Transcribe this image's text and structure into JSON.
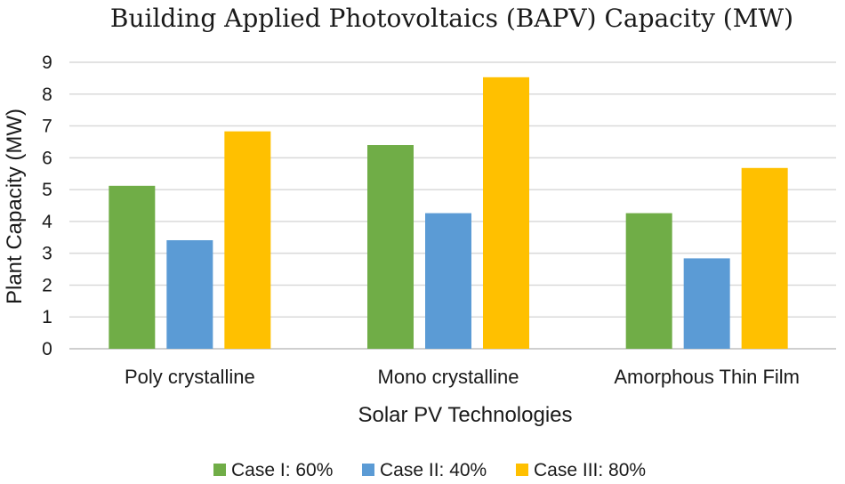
{
  "chart_data": {
    "type": "bar",
    "title": "Building Applied Photovoltaics (BAPV) Capacity (MW)",
    "xlabel": "Solar PV Technologies",
    "ylabel": "Plant Capacity (MW)",
    "ylim": [
      0,
      9
    ],
    "yticks": [
      0,
      1,
      2,
      3,
      4,
      5,
      6,
      7,
      8,
      9
    ],
    "grid": true,
    "legend_position": "bottom",
    "categories": [
      "Poly crystalline",
      "Mono crystalline",
      "Amorphous Thin Film"
    ],
    "series": [
      {
        "name": "Case I: 60%",
        "color": "#70ad47",
        "values": [
          5.12,
          6.4,
          4.26
        ]
      },
      {
        "name": "Case II: 40%",
        "color": "#5b9bd5",
        "values": [
          3.41,
          4.26,
          2.84
        ]
      },
      {
        "name": "Case III: 80%",
        "color": "#ffc000",
        "values": [
          6.83,
          8.53,
          5.68
        ]
      }
    ]
  }
}
